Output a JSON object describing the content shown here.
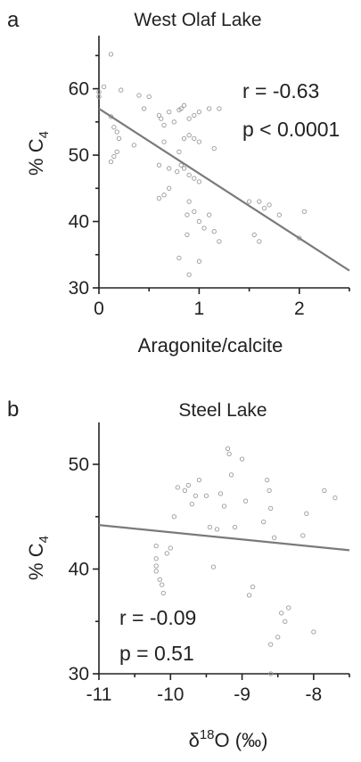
{
  "chart_data": [
    {
      "type": "scatter",
      "panel": "a",
      "title": "West Olaf Lake",
      "xlabel": "Aragonite/calcite",
      "ylabel": "% C4",
      "xlim": [
        0,
        2.5
      ],
      "ylim": [
        30,
        68
      ],
      "xticks": [
        "0",
        "1",
        "2"
      ],
      "xtick_values": [
        0,
        1,
        2
      ],
      "yticks": [
        "30",
        "40",
        "50",
        "60"
      ],
      "ytick_values": [
        30,
        40,
        50,
        60
      ],
      "annotations": [
        "r = -0.63",
        "p < 0.0001"
      ],
      "fit_line": {
        "x": [
          0,
          2.5
        ],
        "y": [
          57.0,
          32.6
        ]
      },
      "points": [
        [
          0.0,
          58.8
        ],
        [
          0.0,
          59.5
        ],
        [
          0.05,
          60.3
        ],
        [
          0.12,
          65.2
        ],
        [
          0.12,
          55.8
        ],
        [
          0.15,
          54.2
        ],
        [
          0.18,
          53.5
        ],
        [
          0.12,
          49.0
        ],
        [
          0.15,
          49.8
        ],
        [
          0.18,
          50.5
        ],
        [
          0.2,
          52.5
        ],
        [
          0.22,
          59.8
        ],
        [
          0.35,
          51.5
        ],
        [
          0.4,
          59.0
        ],
        [
          0.5,
          58.8
        ],
        [
          0.45,
          57.0
        ],
        [
          0.6,
          56.0
        ],
        [
          0.62,
          55.5
        ],
        [
          0.65,
          54.5
        ],
        [
          0.7,
          56.5
        ],
        [
          0.75,
          55.0
        ],
        [
          0.8,
          56.8
        ],
        [
          0.82,
          57.0
        ],
        [
          0.85,
          57.5
        ],
        [
          0.9,
          55.5
        ],
        [
          0.95,
          56.0
        ],
        [
          1.0,
          56.5
        ],
        [
          1.1,
          57.0
        ],
        [
          0.9,
          53.0
        ],
        [
          0.85,
          52.5
        ],
        [
          0.95,
          52.5
        ],
        [
          1.0,
          52.0
        ],
        [
          0.65,
          52.0
        ],
        [
          0.6,
          48.5
        ],
        [
          0.7,
          48.0
        ],
        [
          0.78,
          47.5
        ],
        [
          0.82,
          48.5
        ],
        [
          0.85,
          48.0
        ],
        [
          0.9,
          47.0
        ],
        [
          0.95,
          46.5
        ],
        [
          1.0,
          46.0
        ],
        [
          0.8,
          50.5
        ],
        [
          1.15,
          51.0
        ],
        [
          0.7,
          45.0
        ],
        [
          0.6,
          43.5
        ],
        [
          0.65,
          44.0
        ],
        [
          0.9,
          43.0
        ],
        [
          0.88,
          41.0
        ],
        [
          0.95,
          41.5
        ],
        [
          1.0,
          40.0
        ],
        [
          1.05,
          39.0
        ],
        [
          1.15,
          38.5
        ],
        [
          0.88,
          38.0
        ],
        [
          0.8,
          34.5
        ],
        [
          1.0,
          34.0
        ],
        [
          0.9,
          32.0
        ],
        [
          1.1,
          41.0
        ],
        [
          1.2,
          37.0
        ],
        [
          1.5,
          43.0
        ],
        [
          1.6,
          43.0
        ],
        [
          1.65,
          42.0
        ],
        [
          1.7,
          42.5
        ],
        [
          1.8,
          41.0
        ],
        [
          1.55,
          38.0
        ],
        [
          1.6,
          37.0
        ],
        [
          2.05,
          41.5
        ],
        [
          2.0,
          37.5
        ],
        [
          1.2,
          57.0
        ]
      ]
    },
    {
      "type": "scatter",
      "panel": "b",
      "title": "Steel Lake",
      "xlabel": "δ18O (‰)",
      "ylabel": "% C4",
      "xlim": [
        -11.0,
        -7.5
      ],
      "ylim": [
        30,
        54
      ],
      "xticks": [
        "-11",
        "-10",
        "-9",
        "-8"
      ],
      "xtick_values": [
        -11,
        -10,
        -9,
        -8
      ],
      "yticks": [
        "30",
        "40",
        "50"
      ],
      "ytick_values": [
        30,
        40,
        50
      ],
      "annotations": [
        "r = -0.09",
        "p = 0.51"
      ],
      "fit_line": {
        "x": [
          -11.0,
          -7.5
        ],
        "y": [
          44.2,
          41.8
        ]
      },
      "points": [
        [
          -10.2,
          42.2
        ],
        [
          -10.2,
          41.0
        ],
        [
          -10.2,
          40.3
        ],
        [
          -10.2,
          39.8
        ],
        [
          -10.15,
          39.0
        ],
        [
          -10.12,
          38.5
        ],
        [
          -10.1,
          37.7
        ],
        [
          -10.05,
          41.5
        ],
        [
          -10.0,
          42.0
        ],
        [
          -9.95,
          45.0
        ],
        [
          -9.9,
          47.8
        ],
        [
          -9.8,
          47.5
        ],
        [
          -9.75,
          48.0
        ],
        [
          -9.7,
          46.2
        ],
        [
          -9.65,
          47.0
        ],
        [
          -9.6,
          48.5
        ],
        [
          -9.5,
          47.0
        ],
        [
          -9.45,
          44.0
        ],
        [
          -9.4,
          40.2
        ],
        [
          -9.35,
          43.8
        ],
        [
          -9.3,
          47.2
        ],
        [
          -9.25,
          46.0
        ],
        [
          -9.2,
          51.5
        ],
        [
          -9.18,
          51.0
        ],
        [
          -9.15,
          49.0
        ],
        [
          -9.1,
          44.0
        ],
        [
          -9.0,
          50.5
        ],
        [
          -8.95,
          46.5
        ],
        [
          -8.9,
          37.5
        ],
        [
          -8.85,
          38.3
        ],
        [
          -8.7,
          44.5
        ],
        [
          -8.65,
          48.5
        ],
        [
          -8.62,
          47.5
        ],
        [
          -8.6,
          45.8
        ],
        [
          -8.55,
          43.0
        ],
        [
          -8.6,
          32.8
        ],
        [
          -8.5,
          33.5
        ],
        [
          -8.45,
          35.8
        ],
        [
          -8.4,
          35.0
        ],
        [
          -8.35,
          36.3
        ],
        [
          -8.1,
          45.3
        ],
        [
          -8.15,
          43.2
        ],
        [
          -8.0,
          34.0
        ],
        [
          -7.85,
          47.5
        ],
        [
          -7.7,
          46.8
        ],
        [
          -8.6,
          30.0
        ]
      ]
    }
  ],
  "panel_a": {
    "letter": "a",
    "title": "West Olaf Lake",
    "r_text": "r = -0.63",
    "p_text": "p < 0.0001",
    "xlabel": "Aragonite/calcite",
    "ylabel_main": "% C",
    "ylabel_sub": "4"
  },
  "panel_b": {
    "letter": "b",
    "title": "Steel Lake",
    "r_text": "r = -0.09",
    "p_text": "p = 0.51",
    "xlabel_delta": "δ",
    "xlabel_sup": "18",
    "xlabel_rest": "O (‰)",
    "ylabel_main": "% C",
    "ylabel_sub": "4"
  }
}
